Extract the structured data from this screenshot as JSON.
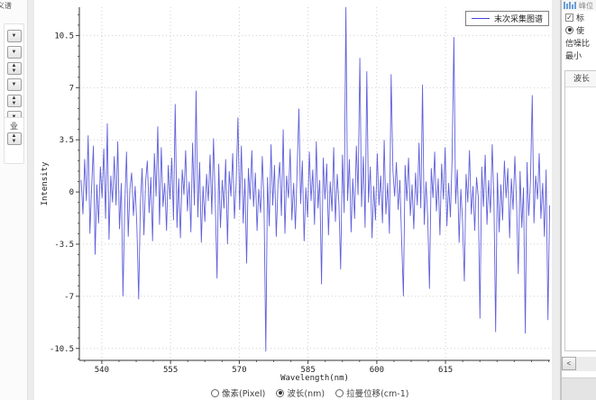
{
  "accent_color": "#4545d6",
  "left_toolbar": {
    "title": "义谱",
    "buttons": [
      {
        "name": "dropdown-button-1",
        "glyphs": [
          "▼"
        ]
      },
      {
        "name": "dropdown-button-2",
        "glyphs": [
          "▼"
        ]
      },
      {
        "name": "spinner-button-1",
        "glyphs": [
          "▲",
          "▼"
        ]
      },
      {
        "name": "dropdown-button-3",
        "glyphs": [
          "▼"
        ]
      },
      {
        "name": "spinner-button-2",
        "glyphs": [
          "▲",
          "▼"
        ]
      },
      {
        "name": "dropdown-button-4",
        "glyphs": [
          "▼"
        ]
      }
    ],
    "tool_glyph": "业",
    "tool_spinner_glyphs": [
      "▲",
      "▼"
    ]
  },
  "chart_data": {
    "type": "line",
    "title": "",
    "xlabel": "Wavelength(nm)",
    "ylabel": "Intensity",
    "xlim": [
      535.1,
      637.8
    ],
    "ylim": [
      -11.3,
      12.4
    ],
    "x_ticks": [
      540,
      555,
      570,
      585,
      600,
      615
    ],
    "y_ticks": [
      10.5,
      7,
      3.5,
      0,
      -3.5,
      -7,
      -10.5
    ],
    "x_minor_step": 3.75,
    "y_minor_step": 0.7,
    "grid": "dotted",
    "legend": {
      "position": "top-right",
      "entries": [
        "末次采集图谱"
      ]
    },
    "series": [
      {
        "name": "末次采集图谱",
        "color": "#4545d6",
        "x_start": 535.5,
        "x_step": 0.38,
        "values": [
          0.8,
          -1.5,
          2.2,
          -0.6,
          3.8,
          -2.8,
          0.3,
          3.1,
          -4.2,
          0.5,
          -2.1,
          1.7,
          -0.4,
          2.9,
          -1.8,
          4.6,
          -3.2,
          1.1,
          -0.7,
          2.4,
          -0.9,
          3.4,
          -2.5,
          0.6,
          -7.0,
          -1.1,
          2.7,
          -3.0,
          0.2,
          1.3,
          -1.6,
          0.4,
          -2.3,
          -7.2,
          -0.8,
          1.6,
          -2.9,
          0.7,
          2.1,
          -1.4,
          1.0,
          -3.3,
          2.6,
          -0.3,
          4.4,
          -2.2,
          3.0,
          -1.0,
          0.6,
          -2.6,
          1.8,
          -0.5,
          2.3,
          -1.9,
          5.9,
          -2.4,
          0.9,
          -3.1,
          1.5,
          -0.2,
          2.8,
          -1.3,
          0.7,
          -2.7,
          3.3,
          -0.9,
          6.8,
          -1.7,
          2.0,
          -3.4,
          0.4,
          -2.0,
          1.2,
          -0.6,
          2.5,
          -1.5,
          3.6,
          -0.8,
          -5.8,
          1.9,
          -2.4,
          0.8,
          -1.1,
          2.2,
          -3.5,
          1.4,
          -0.3,
          2.6,
          -1.8,
          0.6,
          5.0,
          -1.2,
          3.1,
          -2.1,
          0.9,
          -4.8,
          1.6,
          -0.5,
          2.8,
          -1.0,
          1.3,
          -2.6,
          0.2,
          -1.4,
          2.4,
          -0.7,
          -10.7,
          1.0,
          -2.3,
          3.2,
          -0.9,
          1.8,
          -3.0,
          0.5,
          2.0,
          -1.6,
          4.2,
          -2.8,
          1.1,
          -0.4,
          2.9,
          -1.9,
          0.6,
          -2.5,
          1.4,
          5.6,
          -0.8,
          2.1,
          -3.3,
          0.3,
          -1.7,
          2.7,
          -0.6,
          1.5,
          -2.2,
          3.4,
          -1.1,
          0.8,
          -6.2,
          2.3,
          -0.5,
          1.9,
          -2.9,
          0.7,
          -1.3,
          3.0,
          -2.0,
          1.2,
          -0.8,
          -5.2,
          2.5,
          -1.4,
          12.4,
          -0.6,
          2.2,
          -2.7,
          0.9,
          -1.8,
          3.1,
          -0.2,
          9.0,
          -1.0,
          2.4,
          -2.4,
          8.1,
          -0.7,
          1.7,
          -3.1,
          0.4,
          -1.9,
          2.6,
          -0.9,
          1.1,
          -2.1,
          3.5,
          -1.5,
          0.6,
          -2.8,
          7.9,
          1.4,
          -0.3,
          2.0,
          -1.2,
          0.8,
          -3.2,
          -7.0,
          1.8,
          -0.6,
          2.3,
          -1.6,
          0.5,
          -2.5,
          1.3,
          -0.9,
          3.3,
          -1.1,
          7.2,
          -2.2,
          0.7,
          -1.8,
          -6.5,
          1.6,
          -0.4,
          2.7,
          -1.3,
          0.9,
          -2.9,
          1.9,
          -0.5,
          3.0,
          -2.3,
          0.6,
          -1.7,
          2.2,
          10.4,
          -0.8,
          1.5,
          -3.4,
          0.2,
          -2.0,
          -6.0,
          1.2,
          -0.7,
          2.8,
          -1.5,
          0.4,
          -2.6,
          1.0,
          -0.3,
          -8.5,
          1.7,
          -1.0,
          2.5,
          -2.2,
          0.8,
          -1.4,
          3.2,
          -0.6,
          -9.4,
          1.3,
          -2.7,
          0.5,
          -1.9,
          2.1,
          -0.4,
          1.6,
          -3.1,
          0.9,
          -1.2,
          2.4,
          -0.8,
          -5.5,
          1.4,
          -2.4,
          0.3,
          -9.5,
          2.0,
          -1.6,
          0.7,
          6.5,
          -2.1,
          1.1,
          -0.5,
          2.6,
          -1.8,
          0.6,
          -3.0,
          1.5,
          -8.6,
          -0.9
        ]
      }
    ]
  },
  "axis_mode": {
    "options": [
      {
        "label": "像素(Pixel)",
        "selected": false
      },
      {
        "label": "波长(nm)",
        "selected": true
      },
      {
        "label": "拉曼位移(cm-1)",
        "selected": false
      }
    ]
  },
  "right_panel": {
    "header_label": "峰位",
    "checkbox_row_label": "标",
    "radio_row_label": "使",
    "row3_label": "信噪比",
    "row4_label": "最小",
    "groupbox_header": "波长",
    "scroll_left_glyph": "<"
  }
}
